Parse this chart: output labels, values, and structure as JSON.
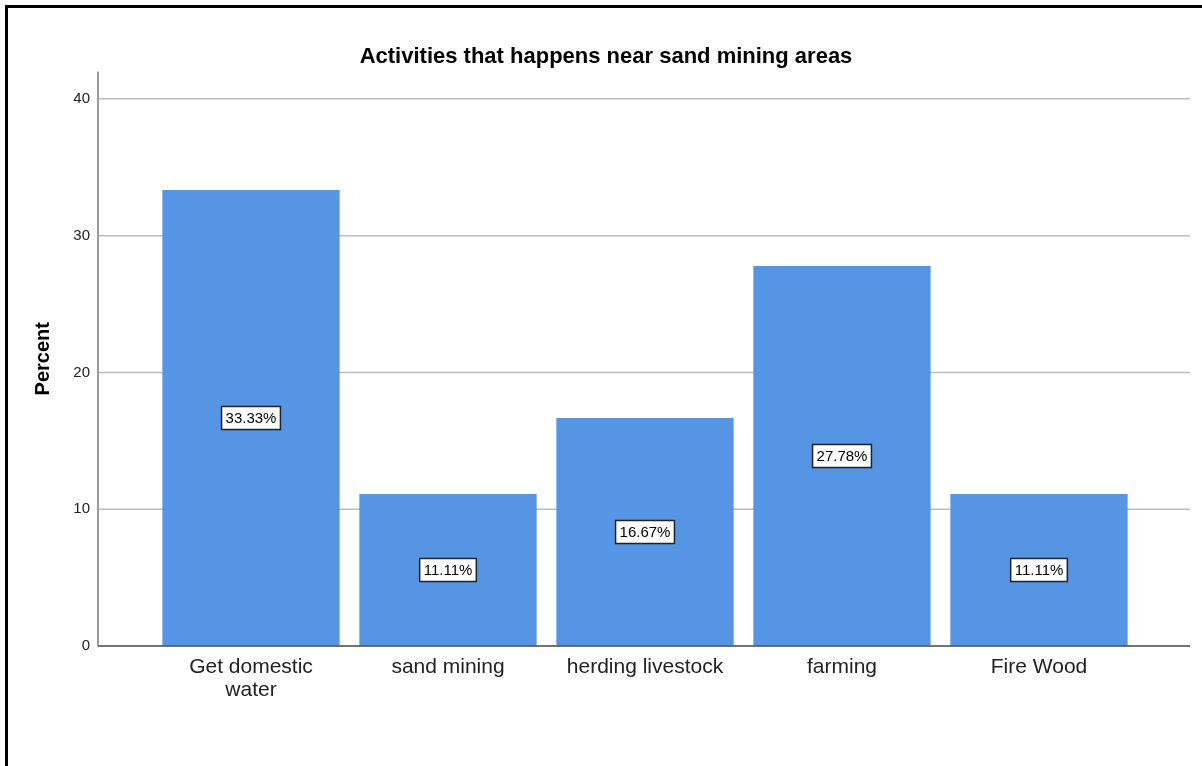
{
  "chart_data": {
    "type": "bar",
    "title": "Activities that happens near sand mining areas",
    "ylabel": "Percent",
    "categories": [
      "Get domestic water",
      "sand mining",
      "herding livestock",
      "farming",
      "Fire Wood"
    ],
    "values": [
      33.33,
      11.11,
      16.67,
      27.78,
      11.11
    ],
    "value_labels": [
      "33.33%",
      "11.11%",
      "16.67%",
      "27.78%",
      "11.11%"
    ],
    "color": "#5595e3",
    "ylim": [
      0,
      42
    ],
    "yticks": [
      0,
      10,
      20,
      30,
      40
    ],
    "grid": "y"
  }
}
